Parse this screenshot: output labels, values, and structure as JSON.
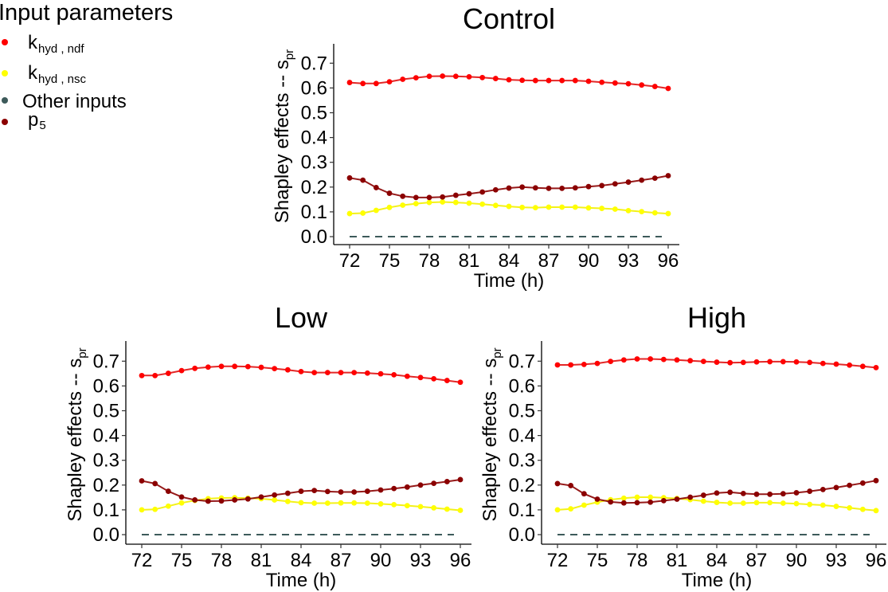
{
  "legend": {
    "title": "Input parameters",
    "items": [
      {
        "key": "k_ndf",
        "base": "k",
        "sub": "hyd , ndf",
        "color": "#ff0000"
      },
      {
        "key": "k_nsc",
        "base": "k",
        "sub": "hyd , nsc",
        "color": "#ffff00"
      },
      {
        "key": "other",
        "base": "Other inputs",
        "sub": "",
        "color": "#3d5a5a"
      },
      {
        "key": "p5",
        "base": "p",
        "sub": "5",
        "color": "#8b0000"
      }
    ]
  },
  "chart_data": [
    {
      "type": "line",
      "title": "Control",
      "xlabel": "Time (h)",
      "ylabel": "Shapley effects  --  s",
      "ylabel_sub": "pr",
      "xlim": [
        72,
        96
      ],
      "ylim": [
        0,
        0.75
      ],
      "xticks": [
        72,
        75,
        78,
        81,
        84,
        87,
        90,
        93,
        96
      ],
      "yticks": [
        "0.0",
        "0.1",
        "0.2",
        "0.3",
        "0.4",
        "0.5",
        "0.6",
        "0.7"
      ],
      "grid": false,
      "x": [
        72,
        73,
        74,
        75,
        76,
        77,
        78,
        79,
        80,
        81,
        82,
        83,
        84,
        85,
        86,
        87,
        88,
        89,
        90,
        91,
        92,
        93,
        94,
        95,
        96
      ],
      "series": [
        {
          "name": "k_hyd,ndf",
          "key": "k_ndf",
          "color": "#ff0000",
          "style": "line-points",
          "values": [
            0.622,
            0.618,
            0.618,
            0.625,
            0.635,
            0.641,
            0.647,
            0.648,
            0.647,
            0.645,
            0.642,
            0.638,
            0.633,
            0.631,
            0.63,
            0.63,
            0.63,
            0.63,
            0.627,
            0.623,
            0.62,
            0.617,
            0.612,
            0.606,
            0.598
          ]
        },
        {
          "name": "k_hyd,nsc",
          "key": "k_nsc",
          "color": "#ffff00",
          "style": "line-points",
          "values": [
            0.093,
            0.095,
            0.106,
            0.118,
            0.127,
            0.133,
            0.138,
            0.14,
            0.138,
            0.135,
            0.131,
            0.126,
            0.122,
            0.118,
            0.117,
            0.119,
            0.119,
            0.119,
            0.116,
            0.114,
            0.111,
            0.105,
            0.101,
            0.096,
            0.093
          ]
        },
        {
          "name": "Other inputs",
          "key": "other",
          "color": "#3d5a5a",
          "style": "dashed",
          "values": [
            0,
            0,
            0,
            0,
            0,
            0,
            0,
            0,
            0,
            0,
            0,
            0,
            0,
            0,
            0,
            0,
            0,
            0,
            0,
            0,
            0,
            0,
            0,
            0,
            0
          ]
        },
        {
          "name": "p5",
          "key": "p5",
          "color": "#8b0000",
          "style": "line-points",
          "values": [
            0.237,
            0.228,
            0.198,
            0.175,
            0.163,
            0.158,
            0.158,
            0.16,
            0.167,
            0.173,
            0.18,
            0.189,
            0.196,
            0.2,
            0.197,
            0.195,
            0.195,
            0.197,
            0.202,
            0.206,
            0.213,
            0.22,
            0.228,
            0.236,
            0.246
          ]
        }
      ]
    },
    {
      "type": "line",
      "title": "Low",
      "xlabel": "Time (h)",
      "ylabel": "Shapley effects  --  s",
      "ylabel_sub": "pr",
      "xlim": [
        72,
        96
      ],
      "ylim": [
        0,
        0.75
      ],
      "xticks": [
        72,
        75,
        78,
        81,
        84,
        87,
        90,
        93,
        96
      ],
      "yticks": [
        "0.0",
        "0.1",
        "0.2",
        "0.3",
        "0.4",
        "0.5",
        "0.6",
        "0.7"
      ],
      "grid": false,
      "x": [
        72,
        73,
        74,
        75,
        76,
        77,
        78,
        79,
        80,
        81,
        82,
        83,
        84,
        85,
        86,
        87,
        88,
        89,
        90,
        91,
        92,
        93,
        94,
        95,
        96
      ],
      "series": [
        {
          "name": "k_hyd,ndf",
          "key": "k_ndf",
          "color": "#ff0000",
          "style": "line-points",
          "values": [
            0.642,
            0.642,
            0.651,
            0.662,
            0.671,
            0.676,
            0.679,
            0.679,
            0.678,
            0.675,
            0.67,
            0.665,
            0.658,
            0.654,
            0.654,
            0.654,
            0.654,
            0.652,
            0.649,
            0.645,
            0.639,
            0.634,
            0.629,
            0.622,
            0.615
          ]
        },
        {
          "name": "k_hyd,nsc",
          "key": "k_nsc",
          "color": "#ffff00",
          "style": "line-points",
          "values": [
            0.1,
            0.102,
            0.115,
            0.128,
            0.138,
            0.145,
            0.148,
            0.149,
            0.147,
            0.145,
            0.14,
            0.134,
            0.129,
            0.127,
            0.127,
            0.128,
            0.128,
            0.127,
            0.124,
            0.121,
            0.117,
            0.113,
            0.108,
            0.103,
            0.098
          ]
        },
        {
          "name": "Other inputs",
          "key": "other",
          "color": "#3d5a5a",
          "style": "dashed",
          "values": [
            0,
            0,
            0,
            0,
            0,
            0,
            0,
            0,
            0,
            0,
            0,
            0,
            0,
            0,
            0,
            0,
            0,
            0,
            0,
            0,
            0,
            0,
            0,
            0,
            0
          ]
        },
        {
          "name": "p5",
          "key": "p5",
          "color": "#8b0000",
          "style": "line-points",
          "values": [
            0.217,
            0.206,
            0.175,
            0.152,
            0.14,
            0.135,
            0.136,
            0.14,
            0.144,
            0.152,
            0.16,
            0.167,
            0.175,
            0.178,
            0.174,
            0.172,
            0.172,
            0.175,
            0.18,
            0.186,
            0.192,
            0.2,
            0.207,
            0.214,
            0.222
          ]
        }
      ]
    },
    {
      "type": "line",
      "title": "High",
      "xlabel": "Time (h)",
      "ylabel": "Shapley effects  --  s",
      "ylabel_sub": "pr",
      "xlim": [
        72,
        96
      ],
      "ylim": [
        0,
        0.75
      ],
      "xticks": [
        72,
        75,
        78,
        81,
        84,
        87,
        90,
        93,
        96
      ],
      "yticks": [
        "0.0",
        "0.1",
        "0.2",
        "0.3",
        "0.4",
        "0.5",
        "0.6",
        "0.7"
      ],
      "grid": false,
      "x": [
        72,
        73,
        74,
        75,
        76,
        77,
        78,
        79,
        80,
        81,
        82,
        83,
        84,
        85,
        86,
        87,
        88,
        89,
        90,
        91,
        92,
        93,
        94,
        95,
        96
      ],
      "series": [
        {
          "name": "k_hyd,ndf",
          "key": "k_ndf",
          "color": "#ff0000",
          "style": "line-points",
          "values": [
            0.685,
            0.685,
            0.687,
            0.691,
            0.699,
            0.705,
            0.709,
            0.709,
            0.707,
            0.705,
            0.702,
            0.699,
            0.696,
            0.694,
            0.695,
            0.697,
            0.698,
            0.698,
            0.697,
            0.695,
            0.691,
            0.688,
            0.684,
            0.679,
            0.674
          ]
        },
        {
          "name": "k_hyd,nsc",
          "key": "k_nsc",
          "color": "#ffff00",
          "style": "line-points",
          "values": [
            0.1,
            0.104,
            0.119,
            0.131,
            0.141,
            0.147,
            0.151,
            0.151,
            0.149,
            0.146,
            0.141,
            0.135,
            0.13,
            0.127,
            0.127,
            0.129,
            0.129,
            0.127,
            0.125,
            0.122,
            0.119,
            0.114,
            0.108,
            0.102,
            0.097
          ]
        },
        {
          "name": "Other inputs",
          "key": "other",
          "color": "#3d5a5a",
          "style": "dashed",
          "values": [
            0,
            0,
            0,
            0,
            0,
            0,
            0,
            0,
            0,
            0,
            0,
            0,
            0,
            0,
            0,
            0,
            0,
            0,
            0,
            0,
            0,
            0,
            0,
            0,
            0
          ]
        },
        {
          "name": "p5",
          "key": "p5",
          "color": "#8b0000",
          "style": "line-points",
          "values": [
            0.206,
            0.198,
            0.165,
            0.143,
            0.132,
            0.128,
            0.129,
            0.131,
            0.137,
            0.143,
            0.151,
            0.159,
            0.168,
            0.171,
            0.166,
            0.163,
            0.163,
            0.165,
            0.169,
            0.175,
            0.182,
            0.19,
            0.199,
            0.208,
            0.218
          ]
        }
      ]
    }
  ]
}
